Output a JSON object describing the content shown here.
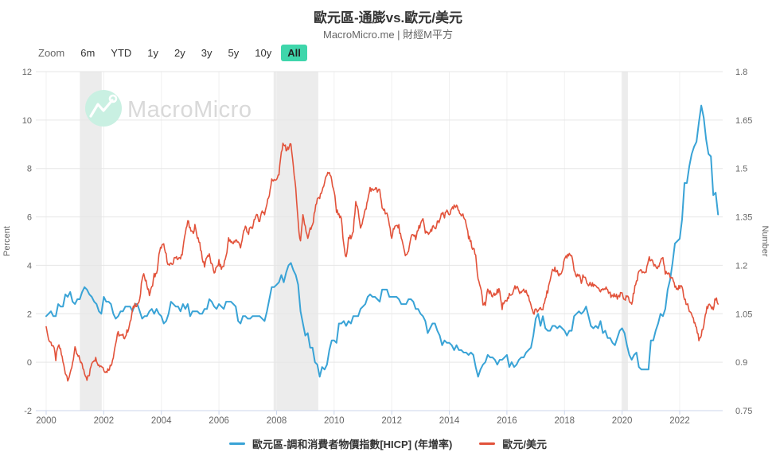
{
  "header": {
    "title": "歐元區-通膨vs.歐元/美元",
    "subtitle": "MacroMicro.me | 財經M平方"
  },
  "toolbar": {
    "zoom_label": "Zoom",
    "selected_bg": "#3fd6ab",
    "buttons": [
      {
        "label": "6m",
        "selected": false
      },
      {
        "label": "YTD",
        "selected": false
      },
      {
        "label": "1y",
        "selected": false
      },
      {
        "label": "2y",
        "selected": false
      },
      {
        "label": "3y",
        "selected": false
      },
      {
        "label": "5y",
        "selected": false
      },
      {
        "label": "10y",
        "selected": false
      },
      {
        "label": "All",
        "selected": true
      }
    ]
  },
  "watermark": {
    "text": "MacroMicro",
    "circle_color": "#c9f0e2",
    "text_color": "#d9d9d9"
  },
  "chart_data": {
    "type": "line",
    "title": "歐元區-通膨vs.歐元/美元",
    "x_start_year": 2000,
    "x_step_months": 1,
    "xticks": [
      2000,
      2002,
      2004,
      2006,
      2008,
      2010,
      2012,
      2014,
      2016,
      2018,
      2020,
      2022
    ],
    "y_left": {
      "title": "Percent",
      "min": -2,
      "max": 12,
      "ticks": [
        "12",
        "10",
        "8",
        "6",
        "4",
        "2",
        "0",
        "-2"
      ]
    },
    "y_right": {
      "title": "Number",
      "min": 0.75,
      "max": 1.8,
      "ticks": [
        "1.8",
        "1.65",
        "1.5",
        "1.35",
        "1.2",
        "1.05",
        "0.9",
        "0.75"
      ]
    },
    "grid": true,
    "legend_position": "bottom",
    "band_color": "#ececec",
    "recession_bands": [
      [
        2001.17,
        2001.93
      ],
      [
        2007.9,
        2009.45
      ],
      [
        2019.98,
        2020.2
      ]
    ],
    "series": [
      {
        "name": "歐元區-調和消費者物價指數[HICP] (年增率)",
        "axis": "left",
        "color": "#39a3d6",
        "values": [
          1.9,
          2.0,
          2.1,
          1.9,
          1.9,
          2.4,
          2.3,
          2.3,
          2.8,
          2.7,
          2.9,
          2.5,
          2.4,
          2.6,
          2.6,
          2.9,
          3.1,
          3.0,
          2.8,
          2.7,
          2.5,
          2.4,
          2.1,
          2.0,
          2.7,
          2.5,
          2.5,
          2.4,
          2.0,
          1.8,
          1.9,
          2.1,
          2.1,
          2.3,
          2.3,
          2.3,
          2.1,
          2.4,
          2.4,
          2.1,
          1.8,
          1.9,
          1.9,
          2.1,
          2.2,
          2.0,
          2.2,
          2.0,
          1.9,
          1.6,
          1.7,
          2.0,
          2.5,
          2.4,
          2.3,
          2.3,
          2.1,
          2.4,
          2.2,
          2.4,
          1.9,
          2.1,
          2.1,
          2.1,
          2.0,
          2.0,
          2.2,
          2.2,
          2.6,
          2.5,
          2.3,
          2.2,
          2.4,
          2.3,
          2.2,
          2.5,
          2.5,
          2.5,
          2.4,
          2.3,
          1.7,
          1.6,
          1.9,
          1.9,
          1.8,
          1.8,
          1.9,
          1.9,
          1.9,
          1.9,
          1.8,
          1.7,
          2.1,
          2.6,
          3.1,
          3.1,
          3.2,
          3.3,
          3.6,
          3.3,
          3.7,
          4.0,
          4.1,
          3.8,
          3.6,
          3.2,
          2.1,
          1.6,
          1.1,
          1.2,
          0.6,
          0.6,
          0.0,
          -0.1,
          -0.6,
          -0.2,
          -0.3,
          -0.1,
          0.5,
          0.9,
          0.9,
          0.8,
          1.6,
          1.6,
          1.7,
          1.5,
          1.7,
          1.6,
          1.9,
          1.9,
          1.9,
          2.2,
          2.3,
          2.4,
          2.7,
          2.8,
          2.7,
          2.7,
          2.6,
          2.5,
          3.0,
          3.0,
          3.0,
          2.7,
          2.7,
          2.7,
          2.7,
          2.6,
          2.4,
          2.4,
          2.4,
          2.6,
          2.6,
          2.5,
          2.2,
          2.2,
          2.0,
          1.9,
          1.7,
          1.2,
          1.4,
          1.6,
          1.6,
          1.3,
          1.1,
          0.7,
          0.9,
          0.8,
          0.8,
          0.7,
          0.5,
          0.7,
          0.5,
          0.5,
          0.4,
          0.4,
          0.3,
          0.4,
          0.3,
          -0.2,
          -0.6,
          -0.3,
          -0.1,
          0.0,
          0.3,
          0.2,
          0.2,
          0.1,
          -0.1,
          0.1,
          0.1,
          0.2,
          0.3,
          -0.2,
          0.0,
          -0.2,
          -0.1,
          0.1,
          0.2,
          0.2,
          0.4,
          0.5,
          0.6,
          1.1,
          1.8,
          2.0,
          1.5,
          1.9,
          1.4,
          1.3,
          1.3,
          1.5,
          1.5,
          1.4,
          1.5,
          1.4,
          1.3,
          1.1,
          1.3,
          1.3,
          1.9,
          2.0,
          2.1,
          2.0,
          2.1,
          2.3,
          1.9,
          1.5,
          1.4,
          1.5,
          1.4,
          1.7,
          1.2,
          1.3,
          1.0,
          1.0,
          0.8,
          0.7,
          1.0,
          1.3,
          1.4,
          1.2,
          0.7,
          0.3,
          0.1,
          0.3,
          0.4,
          -0.2,
          -0.3,
          -0.3,
          -0.3,
          -0.3,
          0.9,
          0.9,
          1.3,
          1.6,
          2.0,
          1.9,
          2.2,
          3.0,
          3.4,
          4.1,
          4.9,
          5.0,
          5.1,
          5.9,
          7.4,
          7.4,
          8.1,
          8.6,
          8.9,
          9.1,
          9.9,
          10.6,
          10.1,
          9.2,
          8.6,
          8.5,
          6.9,
          7.0,
          6.1
        ]
      },
      {
        "name": "歐元/美元",
        "axis": "right",
        "color": "#e2523a",
        "noisy": true,
        "values": [
          1.01,
          0.97,
          0.96,
          0.95,
          0.91,
          0.95,
          0.94,
          0.9,
          0.87,
          0.85,
          0.86,
          0.9,
          0.94,
          0.92,
          0.91,
          0.89,
          0.87,
          0.85,
          0.86,
          0.9,
          0.91,
          0.91,
          0.89,
          0.89,
          0.88,
          0.87,
          0.88,
          0.89,
          0.92,
          0.96,
          0.99,
          0.98,
          0.98,
          0.98,
          1.0,
          1.02,
          1.06,
          1.08,
          1.08,
          1.09,
          1.16,
          1.17,
          1.14,
          1.11,
          1.13,
          1.17,
          1.17,
          1.23,
          1.26,
          1.26,
          1.23,
          1.2,
          1.2,
          1.21,
          1.23,
          1.22,
          1.22,
          1.25,
          1.3,
          1.34,
          1.31,
          1.3,
          1.32,
          1.29,
          1.27,
          1.22,
          1.2,
          1.23,
          1.23,
          1.2,
          1.18,
          1.19,
          1.21,
          1.19,
          1.2,
          1.23,
          1.28,
          1.27,
          1.27,
          1.28,
          1.27,
          1.26,
          1.29,
          1.32,
          1.3,
          1.31,
          1.32,
          1.35,
          1.35,
          1.34,
          1.37,
          1.36,
          1.39,
          1.42,
          1.47,
          1.46,
          1.47,
          1.48,
          1.55,
          1.58,
          1.56,
          1.56,
          1.58,
          1.5,
          1.44,
          1.33,
          1.27,
          1.35,
          1.32,
          1.28,
          1.31,
          1.32,
          1.37,
          1.4,
          1.41,
          1.43,
          1.46,
          1.48,
          1.49,
          1.46,
          1.43,
          1.37,
          1.36,
          1.34,
          1.26,
          1.22,
          1.28,
          1.29,
          1.31,
          1.39,
          1.37,
          1.32,
          1.34,
          1.37,
          1.4,
          1.44,
          1.43,
          1.44,
          1.43,
          1.43,
          1.38,
          1.37,
          1.36,
          1.32,
          1.29,
          1.32,
          1.32,
          1.32,
          1.28,
          1.25,
          1.23,
          1.24,
          1.29,
          1.3,
          1.28,
          1.31,
          1.33,
          1.34,
          1.3,
          1.3,
          1.3,
          1.32,
          1.31,
          1.33,
          1.34,
          1.36,
          1.35,
          1.37,
          1.36,
          1.37,
          1.38,
          1.38,
          1.37,
          1.36,
          1.35,
          1.33,
          1.29,
          1.27,
          1.25,
          1.23,
          1.16,
          1.14,
          1.08,
          1.08,
          1.12,
          1.12,
          1.1,
          1.11,
          1.12,
          1.12,
          1.07,
          1.09,
          1.09,
          1.11,
          1.11,
          1.13,
          1.13,
          1.12,
          1.11,
          1.12,
          1.12,
          1.1,
          1.08,
          1.05,
          1.06,
          1.06,
          1.07,
          1.07,
          1.1,
          1.12,
          1.15,
          1.18,
          1.19,
          1.18,
          1.17,
          1.18,
          1.22,
          1.23,
          1.23,
          1.23,
          1.18,
          1.17,
          1.17,
          1.15,
          1.17,
          1.15,
          1.14,
          1.14,
          1.14,
          1.14,
          1.13,
          1.12,
          1.12,
          1.13,
          1.12,
          1.11,
          1.1,
          1.11,
          1.1,
          1.11,
          1.11,
          1.09,
          1.11,
          1.09,
          1.08,
          1.12,
          1.15,
          1.18,
          1.18,
          1.18,
          1.18,
          1.22,
          1.22,
          1.21,
          1.19,
          1.2,
          1.21,
          1.22,
          1.18,
          1.18,
          1.17,
          1.16,
          1.14,
          1.13,
          1.13,
          1.13,
          1.1,
          1.08,
          1.06,
          1.05,
          1.02,
          1.01,
          0.97,
          0.98,
          1.02,
          1.06,
          1.08,
          1.07,
          1.07,
          1.1,
          1.08
        ]
      }
    ]
  },
  "legend": [
    {
      "label": "歐元區-調和消費者物價指數[HICP] (年增率)",
      "color": "#39a3d6"
    },
    {
      "label": "歐元/美元",
      "color": "#e2523a"
    }
  ]
}
